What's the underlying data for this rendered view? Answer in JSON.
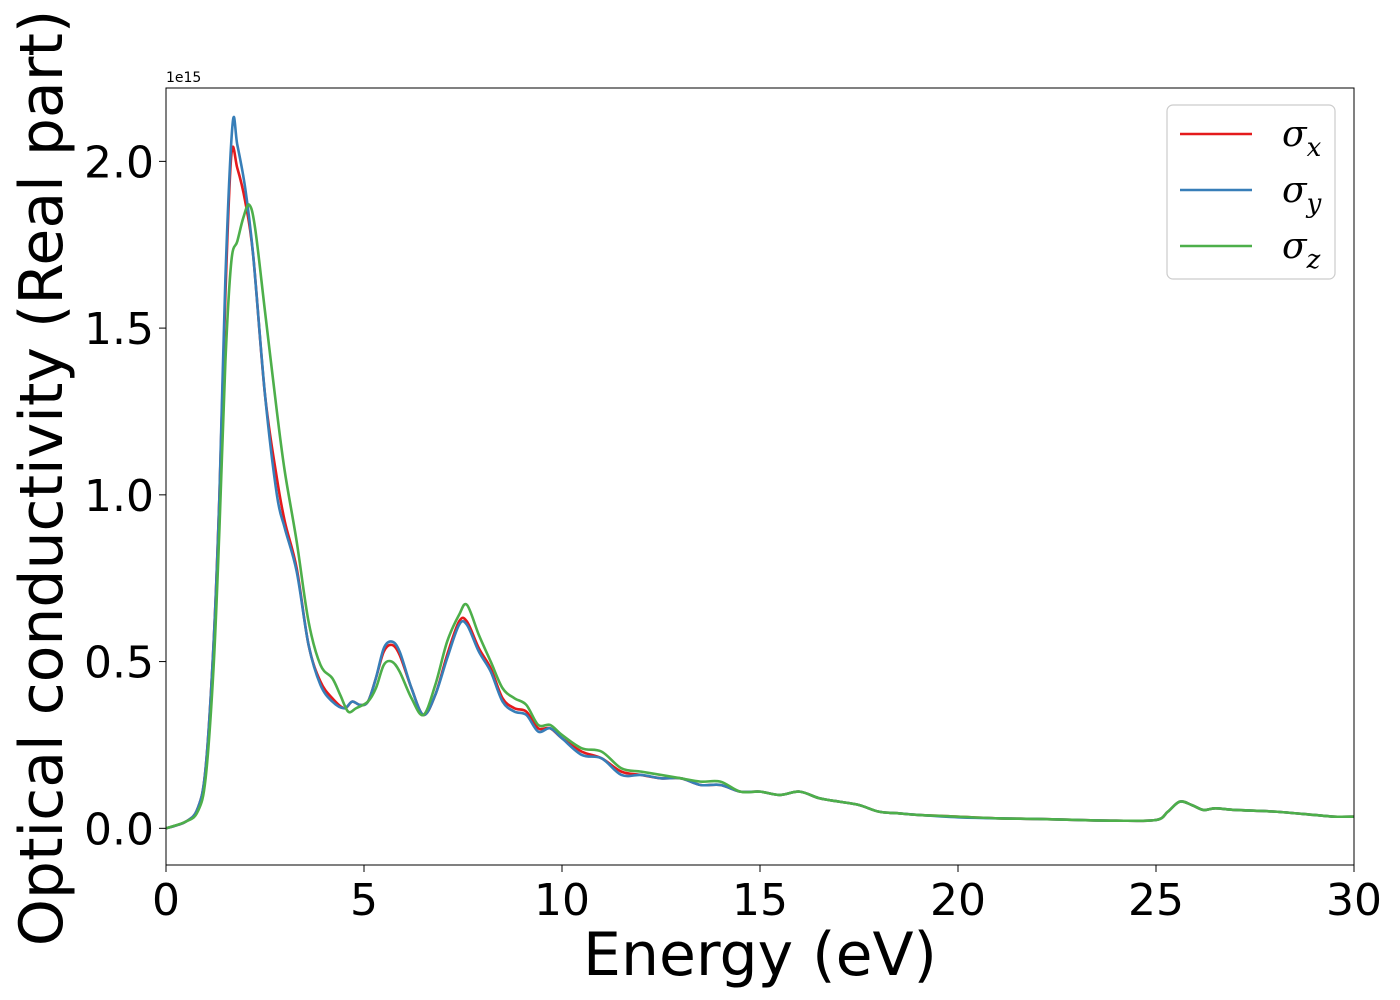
{
  "chart_data": {
    "type": "line",
    "title": "",
    "xlabel": "Energy (eV)",
    "ylabel": "Optical conductivity (Real part)",
    "y_offset_label": "1e15",
    "xlim": [
      0,
      30
    ],
    "ylim": [
      -0.11,
      2.22
    ],
    "xticks": [
      0,
      5,
      10,
      15,
      20,
      25,
      30
    ],
    "yticks": [
      0.0,
      0.5,
      1.0,
      1.5,
      2.0
    ],
    "grid": false,
    "legend_position": "top-right",
    "series": [
      {
        "name": "σx",
        "legend_symbol": "σ",
        "legend_sub": "x",
        "color": "#e41a1c",
        "points": [
          [
            0,
            0
          ],
          [
            0.5,
            0.02
          ],
          [
            0.8,
            0.06
          ],
          [
            1.0,
            0.18
          ],
          [
            1.2,
            0.55
          ],
          [
            1.35,
            1.0
          ],
          [
            1.5,
            1.6
          ],
          [
            1.65,
            2.02
          ],
          [
            1.8,
            1.98
          ],
          [
            2.0,
            1.88
          ],
          [
            2.2,
            1.72
          ],
          [
            2.5,
            1.3
          ],
          [
            2.8,
            1.05
          ],
          [
            3.0,
            0.92
          ],
          [
            3.3,
            0.78
          ],
          [
            3.6,
            0.55
          ],
          [
            3.9,
            0.44
          ],
          [
            4.2,
            0.39
          ],
          [
            4.5,
            0.36
          ],
          [
            4.7,
            0.38
          ],
          [
            4.9,
            0.37
          ],
          [
            5.1,
            0.38
          ],
          [
            5.3,
            0.45
          ],
          [
            5.5,
            0.53
          ],
          [
            5.7,
            0.55
          ],
          [
            5.9,
            0.52
          ],
          [
            6.2,
            0.42
          ],
          [
            6.5,
            0.34
          ],
          [
            6.8,
            0.4
          ],
          [
            7.1,
            0.52
          ],
          [
            7.4,
            0.62
          ],
          [
            7.6,
            0.62
          ],
          [
            7.9,
            0.54
          ],
          [
            8.2,
            0.48
          ],
          [
            8.5,
            0.39
          ],
          [
            8.8,
            0.36
          ],
          [
            9.1,
            0.35
          ],
          [
            9.4,
            0.3
          ],
          [
            9.7,
            0.3
          ],
          [
            10.0,
            0.27
          ],
          [
            10.5,
            0.23
          ],
          [
            11.0,
            0.21
          ],
          [
            11.5,
            0.17
          ],
          [
            12.0,
            0.16
          ],
          [
            12.5,
            0.15
          ],
          [
            13.0,
            0.15
          ],
          [
            13.5,
            0.13
          ],
          [
            14.0,
            0.13
          ],
          [
            14.5,
            0.11
          ],
          [
            15.0,
            0.11
          ],
          [
            15.5,
            0.1
          ],
          [
            16.0,
            0.11
          ],
          [
            16.5,
            0.09
          ],
          [
            17.0,
            0.08
          ],
          [
            17.5,
            0.07
          ],
          [
            18.0,
            0.05
          ],
          [
            18.5,
            0.045
          ],
          [
            19.0,
            0.04
          ],
          [
            20.0,
            0.035
          ],
          [
            21.0,
            0.03
          ],
          [
            22.0,
            0.028
          ],
          [
            23.0,
            0.025
          ],
          [
            24.0,
            0.023
          ],
          [
            25.0,
            0.025
          ],
          [
            25.3,
            0.05
          ],
          [
            25.6,
            0.08
          ],
          [
            25.9,
            0.07
          ],
          [
            26.2,
            0.055
          ],
          [
            26.5,
            0.06
          ],
          [
            27.0,
            0.055
          ],
          [
            28.0,
            0.05
          ],
          [
            29.0,
            0.04
          ],
          [
            29.5,
            0.035
          ],
          [
            30.0,
            0.035
          ]
        ]
      },
      {
        "name": "σy",
        "legend_symbol": "σ",
        "legend_sub": "y",
        "color": "#377eb8",
        "points": [
          [
            0,
            0
          ],
          [
            0.5,
            0.02
          ],
          [
            0.8,
            0.06
          ],
          [
            1.0,
            0.18
          ],
          [
            1.2,
            0.55
          ],
          [
            1.35,
            1.0
          ],
          [
            1.5,
            1.65
          ],
          [
            1.68,
            2.11
          ],
          [
            1.8,
            2.05
          ],
          [
            2.0,
            1.92
          ],
          [
            2.2,
            1.72
          ],
          [
            2.5,
            1.3
          ],
          [
            2.8,
            1.0
          ],
          [
            3.0,
            0.9
          ],
          [
            3.3,
            0.77
          ],
          [
            3.6,
            0.55
          ],
          [
            3.9,
            0.43
          ],
          [
            4.2,
            0.38
          ],
          [
            4.5,
            0.36
          ],
          [
            4.7,
            0.38
          ],
          [
            4.9,
            0.37
          ],
          [
            5.1,
            0.38
          ],
          [
            5.3,
            0.45
          ],
          [
            5.5,
            0.54
          ],
          [
            5.7,
            0.56
          ],
          [
            5.9,
            0.53
          ],
          [
            6.2,
            0.42
          ],
          [
            6.5,
            0.34
          ],
          [
            6.8,
            0.4
          ],
          [
            7.1,
            0.51
          ],
          [
            7.4,
            0.61
          ],
          [
            7.6,
            0.61
          ],
          [
            7.9,
            0.53
          ],
          [
            8.2,
            0.47
          ],
          [
            8.5,
            0.38
          ],
          [
            8.8,
            0.35
          ],
          [
            9.1,
            0.34
          ],
          [
            9.4,
            0.29
          ],
          [
            9.7,
            0.3
          ],
          [
            10.0,
            0.27
          ],
          [
            10.5,
            0.22
          ],
          [
            11.0,
            0.21
          ],
          [
            11.5,
            0.16
          ],
          [
            12.0,
            0.16
          ],
          [
            12.5,
            0.15
          ],
          [
            13.0,
            0.15
          ],
          [
            13.5,
            0.13
          ],
          [
            14.0,
            0.13
          ],
          [
            14.5,
            0.11
          ],
          [
            15.0,
            0.11
          ],
          [
            15.5,
            0.1
          ],
          [
            16.0,
            0.11
          ],
          [
            16.5,
            0.09
          ],
          [
            17.0,
            0.08
          ],
          [
            17.5,
            0.07
          ],
          [
            18.0,
            0.05
          ],
          [
            18.5,
            0.045
          ],
          [
            19.0,
            0.04
          ],
          [
            20.0,
            0.033
          ],
          [
            21.0,
            0.03
          ],
          [
            22.0,
            0.028
          ],
          [
            23.0,
            0.025
          ],
          [
            24.0,
            0.023
          ],
          [
            25.0,
            0.025
          ],
          [
            25.3,
            0.05
          ],
          [
            25.6,
            0.08
          ],
          [
            25.9,
            0.07
          ],
          [
            26.2,
            0.055
          ],
          [
            26.5,
            0.06
          ],
          [
            27.0,
            0.055
          ],
          [
            28.0,
            0.05
          ],
          [
            29.0,
            0.04
          ],
          [
            29.5,
            0.035
          ],
          [
            30.0,
            0.035
          ]
        ]
      },
      {
        "name": "σz",
        "legend_symbol": "σ",
        "legend_sub": "z",
        "color": "#4daf4a",
        "points": [
          [
            0,
            0
          ],
          [
            0.5,
            0.02
          ],
          [
            0.8,
            0.05
          ],
          [
            1.0,
            0.15
          ],
          [
            1.2,
            0.48
          ],
          [
            1.35,
            0.9
          ],
          [
            1.5,
            1.4
          ],
          [
            1.65,
            1.7
          ],
          [
            1.8,
            1.76
          ],
          [
            1.95,
            1.83
          ],
          [
            2.1,
            1.87
          ],
          [
            2.25,
            1.8
          ],
          [
            2.5,
            1.55
          ],
          [
            2.8,
            1.25
          ],
          [
            3.0,
            1.07
          ],
          [
            3.3,
            0.86
          ],
          [
            3.6,
            0.62
          ],
          [
            3.9,
            0.49
          ],
          [
            4.2,
            0.45
          ],
          [
            4.4,
            0.4
          ],
          [
            4.6,
            0.35
          ],
          [
            4.8,
            0.36
          ],
          [
            5.1,
            0.38
          ],
          [
            5.3,
            0.42
          ],
          [
            5.5,
            0.49
          ],
          [
            5.7,
            0.5
          ],
          [
            5.9,
            0.47
          ],
          [
            6.2,
            0.39
          ],
          [
            6.5,
            0.34
          ],
          [
            6.8,
            0.43
          ],
          [
            7.1,
            0.56
          ],
          [
            7.4,
            0.64
          ],
          [
            7.6,
            0.67
          ],
          [
            7.9,
            0.58
          ],
          [
            8.2,
            0.5
          ],
          [
            8.5,
            0.42
          ],
          [
            8.8,
            0.39
          ],
          [
            9.1,
            0.37
          ],
          [
            9.4,
            0.31
          ],
          [
            9.7,
            0.31
          ],
          [
            10.0,
            0.28
          ],
          [
            10.5,
            0.24
          ],
          [
            11.0,
            0.23
          ],
          [
            11.5,
            0.18
          ],
          [
            12.0,
            0.17
          ],
          [
            12.5,
            0.16
          ],
          [
            13.0,
            0.15
          ],
          [
            13.5,
            0.14
          ],
          [
            14.0,
            0.14
          ],
          [
            14.5,
            0.11
          ],
          [
            15.0,
            0.11
          ],
          [
            15.5,
            0.1
          ],
          [
            16.0,
            0.11
          ],
          [
            16.5,
            0.09
          ],
          [
            17.0,
            0.08
          ],
          [
            17.5,
            0.07
          ],
          [
            18.0,
            0.05
          ],
          [
            18.5,
            0.045
          ],
          [
            19.0,
            0.04
          ],
          [
            20.0,
            0.035
          ],
          [
            21.0,
            0.03
          ],
          [
            22.0,
            0.028
          ],
          [
            23.0,
            0.025
          ],
          [
            24.0,
            0.023
          ],
          [
            25.0,
            0.025
          ],
          [
            25.3,
            0.05
          ],
          [
            25.6,
            0.08
          ],
          [
            25.9,
            0.07
          ],
          [
            26.2,
            0.055
          ],
          [
            26.5,
            0.06
          ],
          [
            27.0,
            0.055
          ],
          [
            28.0,
            0.05
          ],
          [
            29.0,
            0.04
          ],
          [
            29.5,
            0.035
          ],
          [
            30.0,
            0.035
          ]
        ]
      }
    ]
  }
}
